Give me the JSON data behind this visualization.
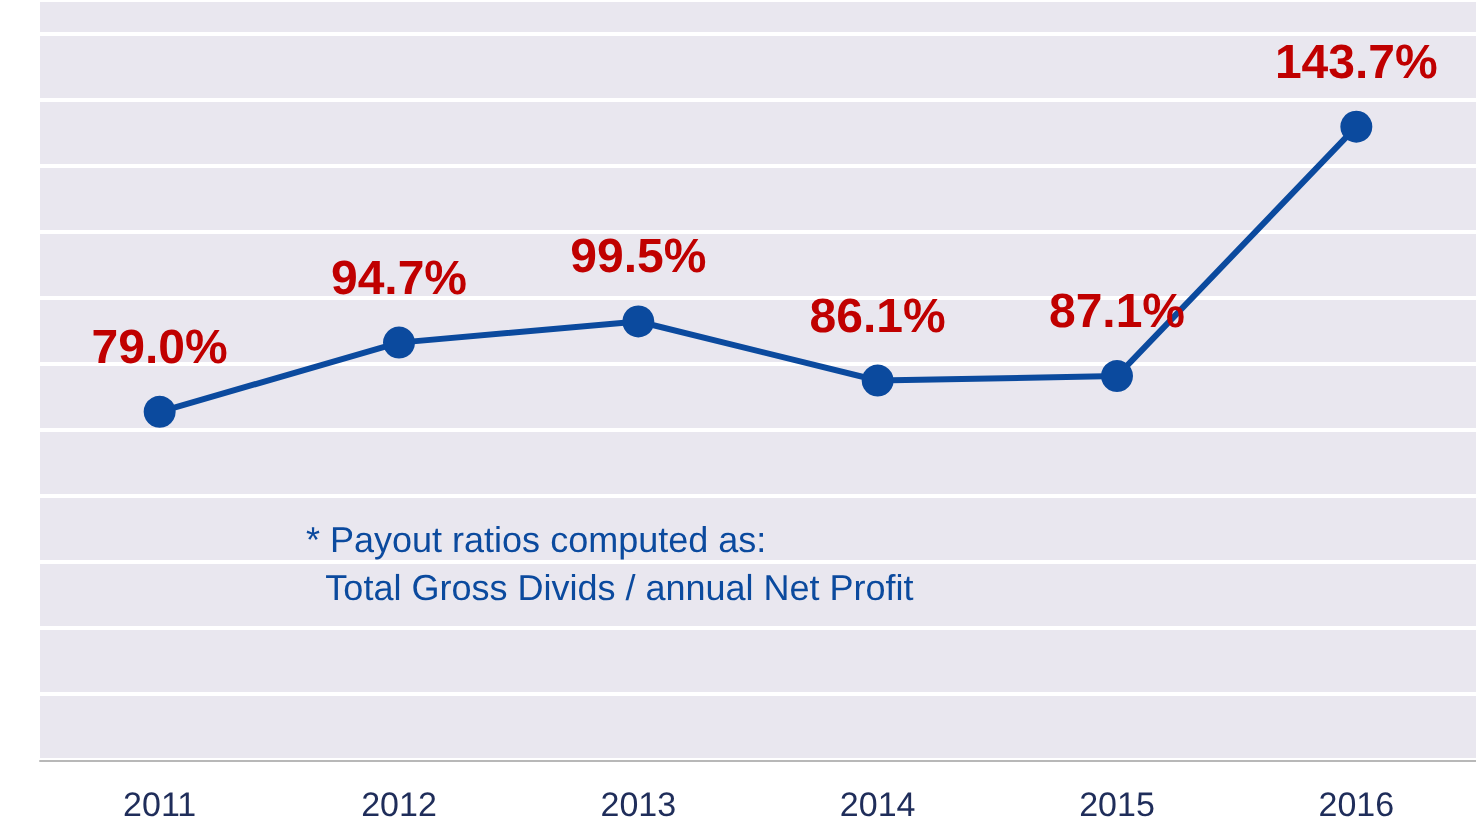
{
  "chart_data": {
    "type": "line",
    "categories": [
      "2011",
      "2012",
      "2013",
      "2014",
      "2015",
      "2016"
    ],
    "series": [
      {
        "color": "#0b4a9e",
        "values": [
          79.0,
          94.7,
          99.5,
          86.1,
          87.1,
          143.7
        ],
        "value_labels": [
          "79.0%",
          "94.7%",
          "99.5%",
          "86.1%",
          "87.1%",
          "143.7%"
        ]
      }
    ],
    "marker": "circle",
    "line_style": "solid",
    "grid": "y",
    "tick_labels": "x",
    "annotations": [
      "* Payout ratios computed as:\n  Total Gross Divids / annual Net Profit"
    ]
  }
}
